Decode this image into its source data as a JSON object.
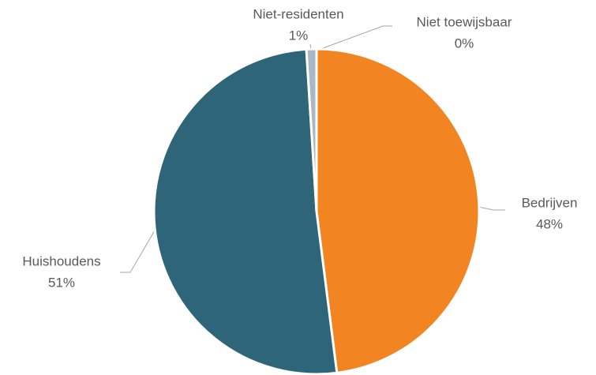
{
  "chart_data": {
    "type": "pie",
    "categories": [
      "Bedrijven",
      "Huishoudens",
      "Niet-residenten",
      "Niet toewijsbaar"
    ],
    "values": [
      48,
      51,
      1,
      0
    ],
    "value_labels": [
      "48%",
      "51%",
      "1%",
      "0%"
    ],
    "colors": [
      "#f28522",
      "#2e6579",
      "#aab7c4",
      "#d9d9d9"
    ]
  }
}
